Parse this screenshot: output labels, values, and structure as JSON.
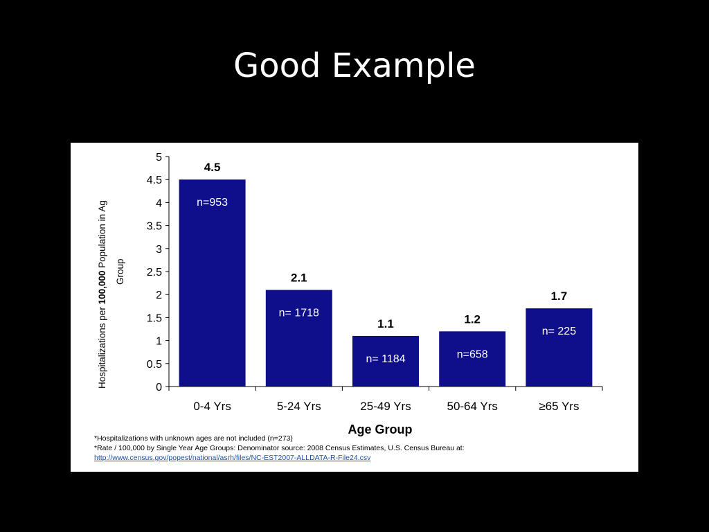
{
  "slide": {
    "title": "Good Example"
  },
  "chart_data": {
    "type": "bar",
    "title": "",
    "categories": [
      "0-4 Yrs",
      "5-24 Yrs",
      "25-49 Yrs",
      "50-64 Yrs",
      "≥65 Yrs"
    ],
    "values": [
      4.5,
      2.1,
      1.1,
      1.2,
      1.7
    ],
    "value_labels": [
      "4.5",
      "2.1",
      "1.1",
      "1.2",
      "1.7"
    ],
    "n_labels": [
      "n=953",
      "n= 1718",
      "n= 1184",
      "n=658",
      "n= 225"
    ],
    "xlabel": "Age Group",
    "ylabel_parts": [
      "Hospitalizations per ",
      "100,000",
      " Population in Ag",
      "Group"
    ],
    "ylim": [
      0,
      5
    ],
    "yticks": [
      "0",
      "0.5",
      "1",
      "1.5",
      "2",
      "2.5",
      "3",
      "3.5",
      "4",
      "4.5",
      "5"
    ],
    "grid": false,
    "legend": "none",
    "bar_color": "#0f0f8c"
  },
  "footnotes": {
    "line1": "*Hospitalizations with unknown ages are not included (n=273)",
    "line2": "*Rate / 100,000 by Single Year Age Groups: Denominator source: 2008 Census Estimates, U.S. Census Bureau at:",
    "link": "http://www.census.gov/popest/national/asrh/files/NC-EST2007-ALLDATA-R-File24.csv"
  }
}
